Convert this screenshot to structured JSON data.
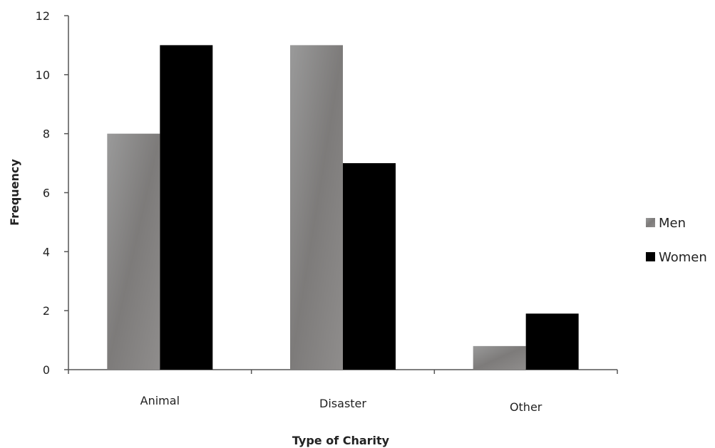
{
  "chart_data": {
    "type": "bar",
    "categories": [
      "Animal",
      "Disaster",
      "Other"
    ],
    "series": [
      {
        "name": "Men",
        "values": [
          8,
          11,
          0.8
        ],
        "color": "#8a8a8a"
      },
      {
        "name": "Women",
        "values": [
          11,
          7,
          1.9
        ],
        "color": "#000000"
      }
    ],
    "title": "",
    "xlabel": "Type of Charity",
    "ylabel": "Frequency",
    "ylim": [
      0,
      12
    ],
    "yticks": [
      "0",
      "2",
      "4",
      "6",
      "8",
      "10",
      "12"
    ],
    "grid": false,
    "legend_position": "right"
  }
}
